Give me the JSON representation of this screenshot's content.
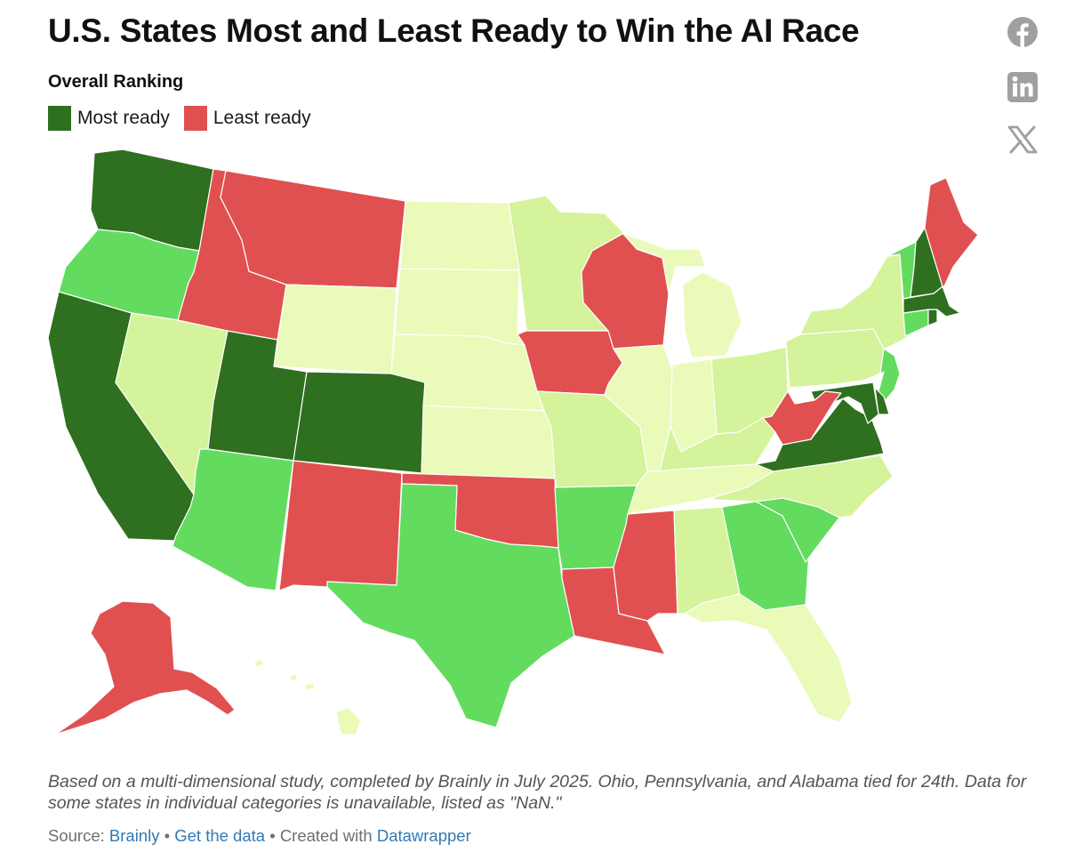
{
  "title": "U.S. States Most and Least Ready to Win the AI Race",
  "subtitle": "Overall Ranking",
  "legend": {
    "most_label": "Most ready",
    "least_label": "Least ready",
    "most_color": "#2f6f20",
    "least_color": "#e05050"
  },
  "palette": {
    "top": "#2f6f20",
    "upper": "#63db5f",
    "middle": "#d4f39a",
    "lower_middle": "#eafab8",
    "bottom": "#e05050"
  },
  "state_tiers": {
    "WA": "top",
    "CA": "top",
    "UT": "top",
    "CO": "top",
    "VA": "top",
    "MD": "top",
    "NH": "top",
    "MA": "top",
    "DE": "top",
    "RI": "top",
    "OR": "upper",
    "AZ": "upper",
    "TX": "upper",
    "AR": "upper",
    "GA": "upper",
    "SC": "upper",
    "VT": "upper",
    "NJ": "upper",
    "CT": "upper",
    "NV": "middle",
    "MN": "middle",
    "MO": "middle",
    "OH": "middle",
    "KY": "middle",
    "PA": "middle",
    "NY": "middle",
    "NC": "middle",
    "AL": "middle",
    "ND": "lower_middle",
    "SD": "lower_middle",
    "NE": "lower_middle",
    "KS": "lower_middle",
    "WY": "lower_middle",
    "IL": "lower_middle",
    "IN": "lower_middle",
    "MI": "lower_middle",
    "TN": "lower_middle",
    "FL": "lower_middle",
    "HI": "lower_middle",
    "ID": "bottom",
    "MT": "bottom",
    "NM": "bottom",
    "OK": "bottom",
    "IA": "bottom",
    "WI": "bottom",
    "LA": "bottom",
    "MS": "bottom",
    "WV": "bottom",
    "ME": "bottom",
    "AK": "bottom"
  },
  "social": {
    "facebook": "facebook-icon",
    "linkedin": "linkedin-icon",
    "x": "x-icon",
    "icon_color": "#a0a0a0"
  },
  "note": "Based on a multi-dimensional study, completed by Brainly in July 2025. Ohio, Pennsylvania, and Alabama tied for 24th. Data for some states in individual categories is unavailable, listed as \"NaN.\"",
  "source": {
    "prefix": "Source: ",
    "source_link": "Brainly",
    "sep1": " • ",
    "data_link": "Get the data",
    "sep2": " • Created with ",
    "tool_link": "Datawrapper"
  }
}
